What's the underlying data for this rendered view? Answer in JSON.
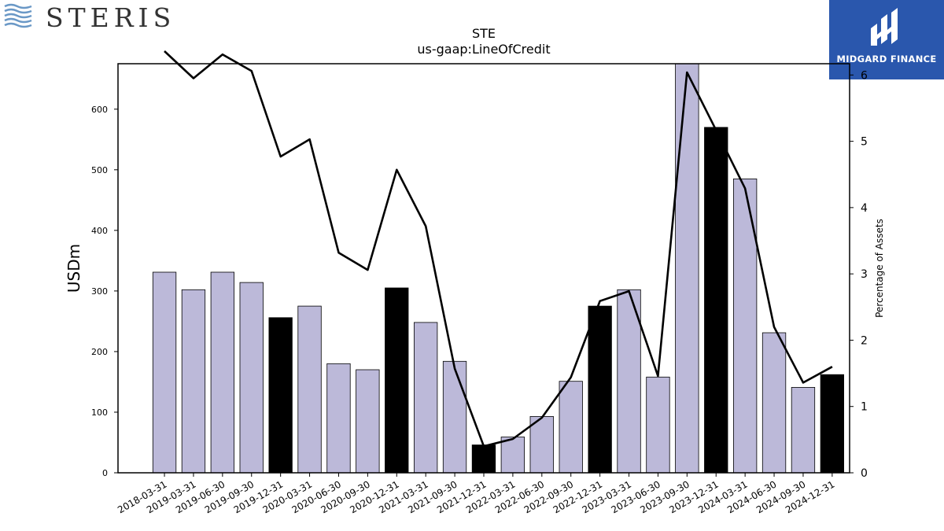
{
  "brand": {
    "left_logo_text": "STERIS",
    "right_logo_text": "MIDGARD FINANCE",
    "right_logo_color": "#2a57ad"
  },
  "chart_data": {
    "type": "bar",
    "title": "STE",
    "subtitle": "us-gaap:LineOfCredit",
    "ylabel": "USDm",
    "y2label": "Percentage of Assets",
    "ylim": [
      0,
      675
    ],
    "y2lim": [
      0,
      6.17
    ],
    "yticks": [
      0,
      100,
      200,
      300,
      400,
      500,
      600
    ],
    "y2ticks": [
      0,
      1,
      2,
      3,
      4,
      5,
      6
    ],
    "grid": false,
    "categories": [
      "2018-03-31",
      "2019-03-31",
      "2019-06-30",
      "2019-09-30",
      "2019-12-31",
      "2020-03-31",
      "2020-06-30",
      "2020-09-30",
      "2020-12-31",
      "2021-03-31",
      "2021-09-30",
      "2021-12-31",
      "2022-03-31",
      "2022-06-30",
      "2022-09-30",
      "2022-12-31",
      "2023-03-31",
      "2023-06-30",
      "2023-09-30",
      "2023-12-31",
      "2024-03-31",
      "2024-06-30",
      "2024-09-30",
      "2024-12-31"
    ],
    "series": [
      {
        "kind": "bar",
        "axis": "left",
        "values": [
          331,
          302,
          331,
          314,
          256,
          275,
          180,
          170,
          305,
          248,
          184,
          46,
          59,
          93,
          151,
          275,
          302,
          158,
          675,
          570,
          485,
          231,
          141,
          162
        ],
        "highlight": [
          false,
          false,
          false,
          false,
          true,
          false,
          false,
          false,
          true,
          false,
          false,
          true,
          false,
          false,
          false,
          true,
          false,
          false,
          false,
          true,
          false,
          false,
          false,
          true
        ],
        "color": "#bcb9d9",
        "highlight_color": "#000000"
      },
      {
        "kind": "line",
        "axis": "right",
        "values": [
          6.36,
          5.95,
          6.31,
          6.06,
          4.77,
          5.03,
          3.32,
          3.06,
          4.57,
          3.72,
          1.57,
          0.4,
          0.51,
          0.83,
          1.44,
          2.59,
          2.74,
          1.46,
          6.04,
          5.17,
          4.29,
          2.2,
          1.36,
          1.6
        ],
        "color": "#000000"
      }
    ]
  }
}
